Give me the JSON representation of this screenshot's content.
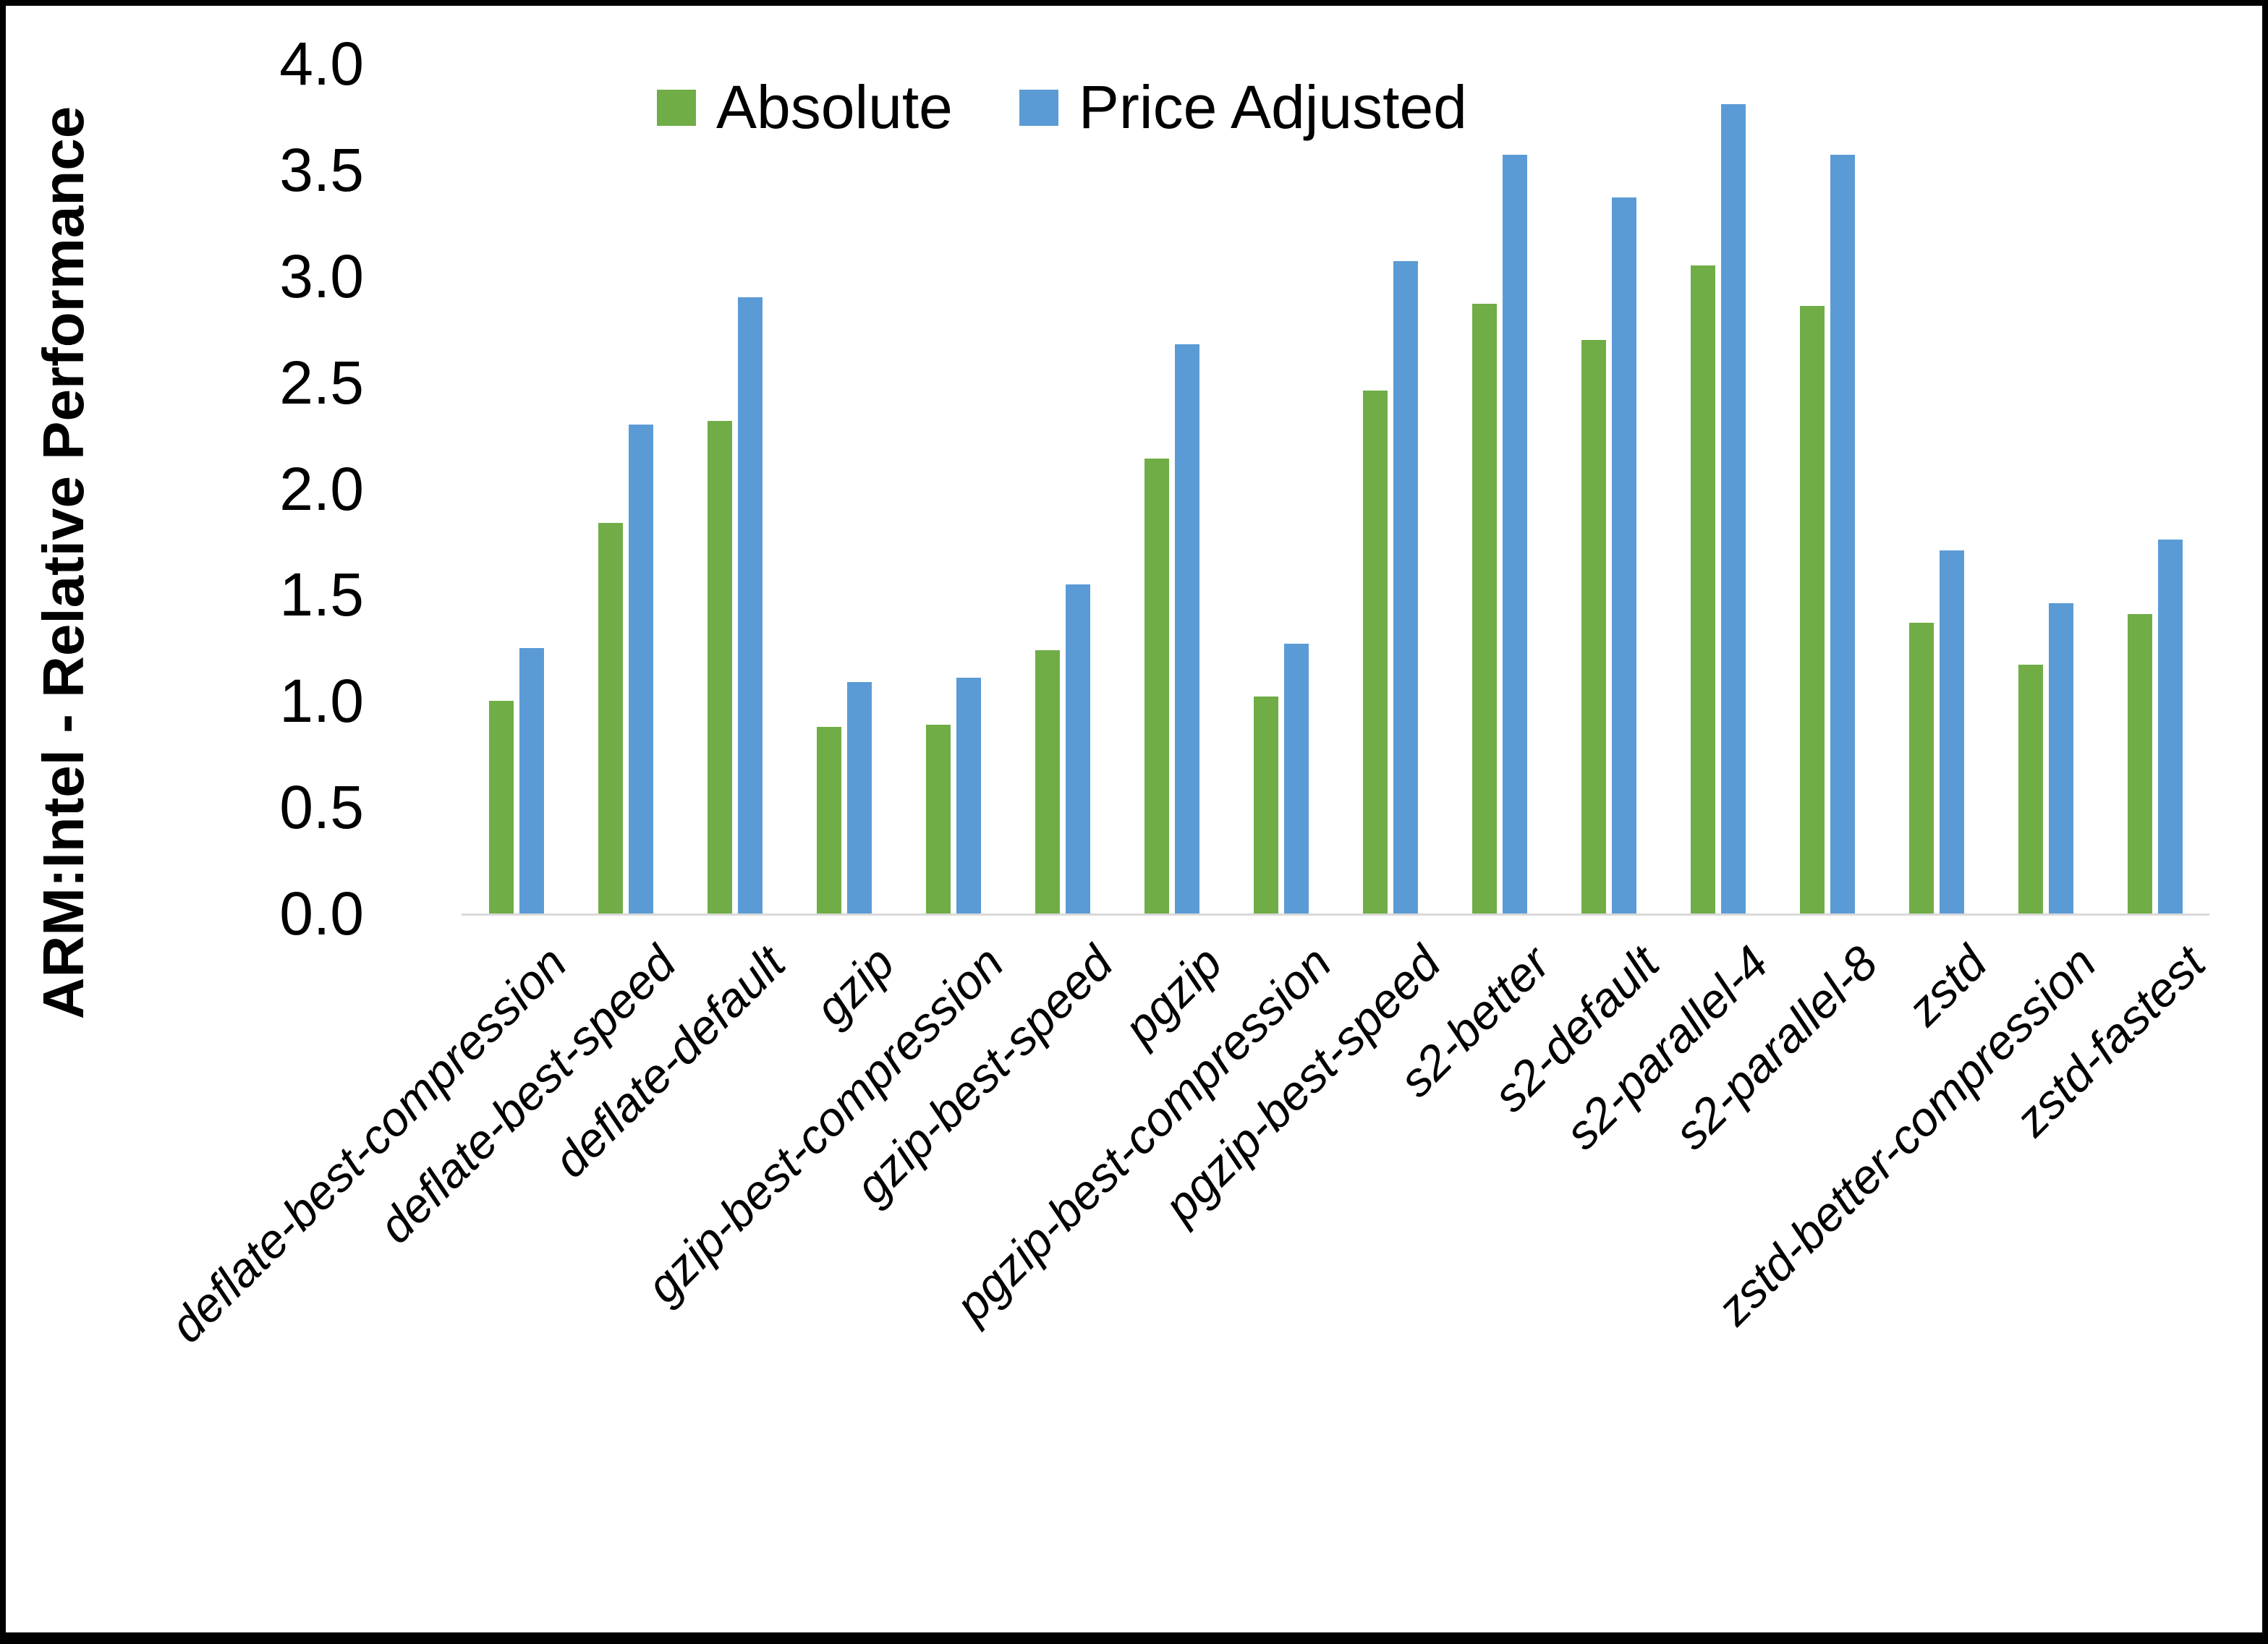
{
  "chart_data": {
    "type": "bar",
    "title": "",
    "xlabel": "",
    "ylabel": "ARM:Intel - Relative Performance",
    "ylim": [
      0.0,
      4.0
    ],
    "yticks": [
      4.0,
      3.5,
      3.0,
      2.5,
      2.0,
      1.5,
      1.0,
      0.5,
      0.0
    ],
    "grid": false,
    "legend_position": "top-center",
    "categories": [
      "deflate-best-compression",
      "deflate-best-speed",
      "deflate-default",
      "gzip",
      "gzip-best-compression",
      "gzip-best-speed",
      "pgzip",
      "pgzip-best-compression",
      "pgzip-best-speed",
      "s2-better",
      "s2-default",
      "s2-parallel-4",
      "s2-parallel-8",
      "zstd",
      "zstd-better-compression",
      "zstd-fastest"
    ],
    "series": [
      {
        "name": "Absolute",
        "color": "#70AD47",
        "values": [
          1.0,
          1.84,
          2.32,
          0.88,
          0.89,
          1.24,
          2.14,
          1.02,
          2.46,
          2.87,
          2.7,
          3.05,
          2.86,
          1.37,
          1.17,
          1.41
        ]
      },
      {
        "name": "Price Adjusted",
        "color": "#5B9BD5",
        "values": [
          1.25,
          2.3,
          2.9,
          1.09,
          1.11,
          1.55,
          2.68,
          1.27,
          3.07,
          3.57,
          3.37,
          3.81,
          3.57,
          1.71,
          1.46,
          1.76
        ]
      }
    ]
  },
  "legend": {
    "items": [
      {
        "label": "Absolute",
        "color": "#70AD47"
      },
      {
        "label": "Price Adjusted",
        "color": "#5B9BD5"
      }
    ]
  },
  "colors": {
    "background": "#FFFFFF",
    "frame": "#000000",
    "axis_line": "#D9D9D9",
    "text": "#000000"
  }
}
